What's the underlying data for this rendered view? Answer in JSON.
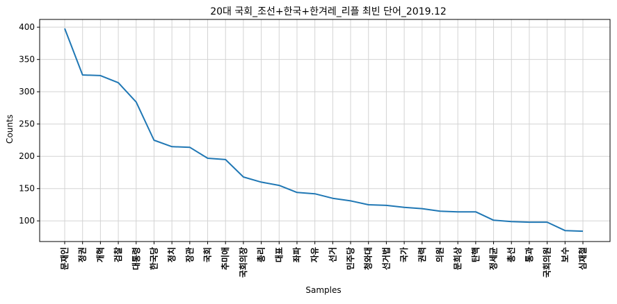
{
  "chart_data": {
    "type": "line",
    "title": "20대 국회_조선+한국+한겨레_리플 최빈 단어_2019.12",
    "xlabel": "Samples",
    "ylabel": "Counts",
    "ylim": [
      68,
      412
    ],
    "yticks": [
      100,
      150,
      200,
      250,
      300,
      350,
      400
    ],
    "grid": true,
    "line_color": "#1f77b4",
    "categories": [
      "문재인",
      "정권",
      "개혁",
      "검찰",
      "대통령",
      "한국당",
      "정치",
      "장관",
      "국회",
      "추미애",
      "국회의장",
      "총리",
      "대표",
      "좌파",
      "자유",
      "선거",
      "민주당",
      "청와대",
      "선거법",
      "국가",
      "권력",
      "의원",
      "문희상",
      "탄핵",
      "정세균",
      "총선",
      "통과",
      "국회의원",
      "보수",
      "심재철"
    ],
    "values": [
      398,
      326,
      325,
      314,
      284,
      225,
      215,
      214,
      197,
      195,
      168,
      160,
      155,
      144,
      142,
      135,
      131,
      125,
      124,
      121,
      119,
      115,
      114,
      114,
      101,
      99,
      98,
      98,
      85,
      84
    ]
  }
}
